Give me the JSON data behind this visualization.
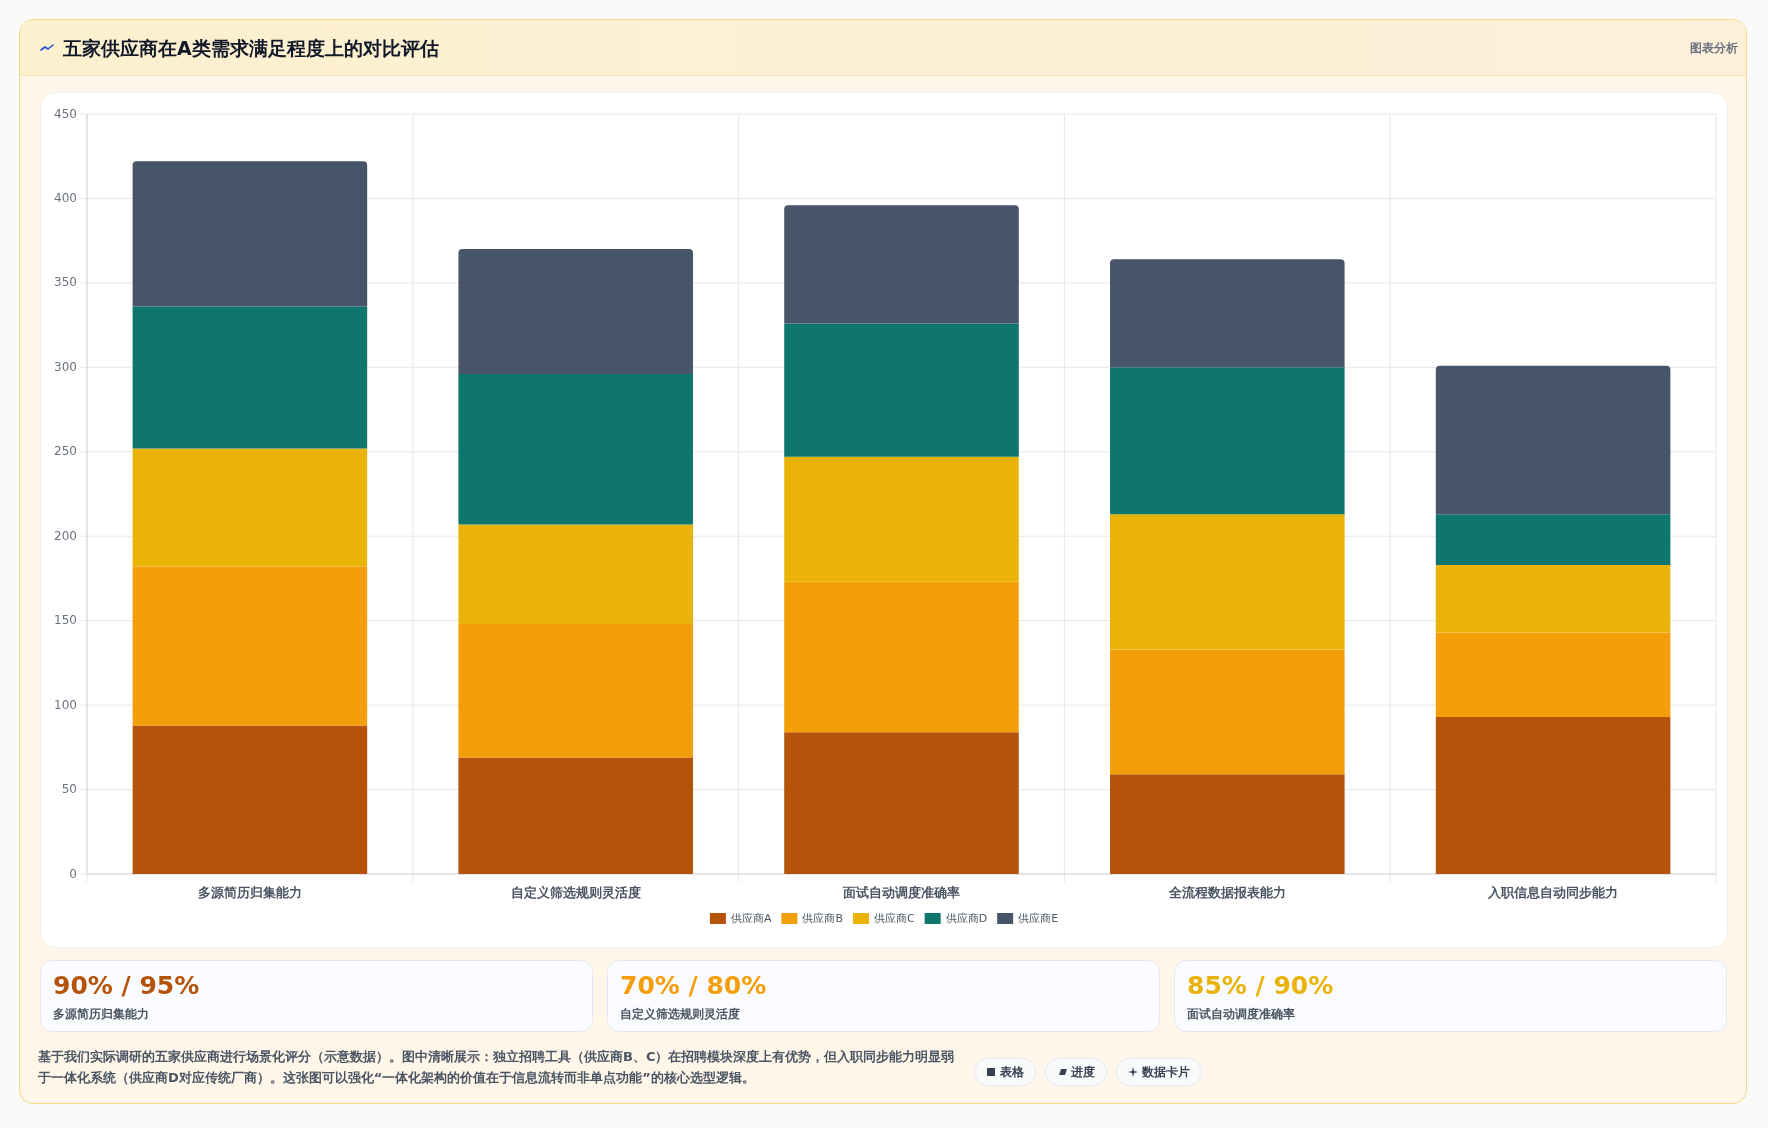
{
  "chart_data": {
    "type": "bar",
    "title": "五家供应商在A类需求满足程度上的对比评估",
    "categories": [
      "多源简历归集能力",
      "自定义筛选规则灵活度",
      "面试自动调度准确率",
      "全流程数据报表能力",
      "入职信息自动同步能力"
    ],
    "stacked": true,
    "series": [
      {
        "name": "供应商A",
        "color": "#b45309",
        "values": [
          88,
          69,
          84,
          59,
          93
        ]
      },
      {
        "name": "供应商B",
        "color": "#f59e0b",
        "values": [
          94,
          79,
          89,
          74,
          50
        ]
      },
      {
        "name": "供应商C",
        "color": "#eab308",
        "values": [
          70,
          59,
          74,
          80,
          40
        ]
      },
      {
        "name": "供应商D",
        "color": "#0f766e",
        "values": [
          84,
          89,
          79,
          87,
          30
        ]
      },
      {
        "name": "供应商E",
        "color": "#475569",
        "values": [
          86,
          74,
          70,
          64,
          88
        ]
      }
    ],
    "ylim": [
      0,
      450
    ],
    "yticks": [
      0,
      50,
      100,
      150,
      200,
      250,
      300,
      350,
      400,
      450
    ],
    "grid": true,
    "legend": "bottom",
    "annotations": [
      "图表分析",
      "90% / 95%",
      "多源简历归集能力",
      "70% / 80%",
      "自定义筛选规则灵活度",
      "85% / 90%",
      "面试自动调度准确率",
      "基于我们实际调研的五家供应商进行场景化评分（示意数据）。图中清晰展示：独立招聘工具（供应商B、C）在招聘模块深度上有优势，但入职同步能力明显弱于一体化系统（供应商D对应传统厂商）。这张图可以强化“一体化架构的价值在于信息流转而非单点功能”的核心选型逻辑。",
      "表格",
      "进度",
      "数据卡片"
    ]
  }
}
